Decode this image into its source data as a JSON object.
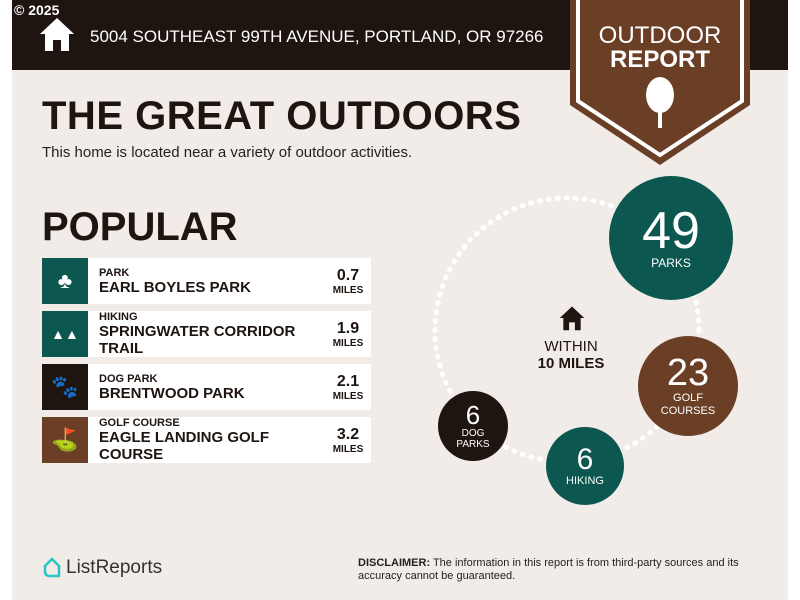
{
  "header": {
    "copyright": "© 2025",
    "address": "5004 SOUTHEAST 99TH AVENUE, PORTLAND, OR 97266",
    "icon": "home-icon"
  },
  "badge": {
    "line1": "OUTDOOR",
    "line2": "REPORT",
    "icon": "tree-icon"
  },
  "title": "THE GREAT OUTDOORS",
  "subtitle": "This home is located near a variety of outdoor activities.",
  "popular": {
    "heading": "POPULAR",
    "items": [
      {
        "category": "PARK",
        "name": "EARL BOYLES PARK",
        "distance": "0.7",
        "unit": "MILES",
        "icon": "park-icon",
        "color": "#0d5751"
      },
      {
        "category": "HIKING",
        "name": "SPRINGWATER CORRIDOR TRAIL",
        "distance": "1.9",
        "unit": "MILES",
        "icon": "trees-icon",
        "color": "#0d5751"
      },
      {
        "category": "DOG PARK",
        "name": "BRENTWOOD PARK",
        "distance": "2.1",
        "unit": "MILES",
        "icon": "paw-icon",
        "color": "#1e1410"
      },
      {
        "category": "GOLF COURSE",
        "name": "EAGLE LANDING GOLF COURSE",
        "distance": "3.2",
        "unit": "MILES",
        "icon": "golf-bag-icon",
        "color": "#6b3f26"
      }
    ]
  },
  "radius": {
    "line1": "WITHIN",
    "line2": "10 MILES"
  },
  "stats": [
    {
      "count": "49",
      "label": "PARKS",
      "color": "#0d5751"
    },
    {
      "count": "23",
      "label": "GOLF COURSES",
      "color": "#6b3f26"
    },
    {
      "count": "6",
      "label": "HIKING",
      "color": "#0d5751"
    },
    {
      "count": "6",
      "label": "DOG PARKS",
      "color": "#1e1410"
    }
  ],
  "footer": {
    "brand": "ListReports",
    "disclaimer_label": "DISCLAIMER:",
    "disclaimer_text": " The information in this report is from third-party sources and its accuracy cannot be guaranteed."
  }
}
